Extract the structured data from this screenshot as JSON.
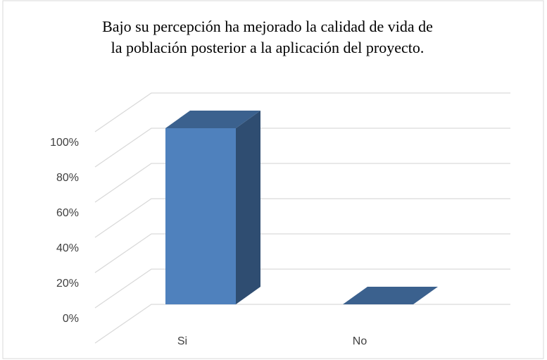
{
  "chart_data": {
    "type": "bar3d",
    "title": [
      "Bajo su percepción ha mejorado la calidad de vida de",
      "la población posterior a la aplicación del proyecto."
    ],
    "categories": [
      "Si",
      "No"
    ],
    "values": [
      100,
      0
    ],
    "color": "#4f81bd",
    "ylim": [
      0,
      120
    ],
    "yticks": [
      {
        "value": 0,
        "label": "0%"
      },
      {
        "value": 20,
        "label": "20%"
      },
      {
        "value": 40,
        "label": "40%"
      },
      {
        "value": 60,
        "label": "60%"
      },
      {
        "value": 80,
        "label": "80%"
      },
      {
        "value": 100,
        "label": "100%"
      }
    ],
    "grid": true
  }
}
